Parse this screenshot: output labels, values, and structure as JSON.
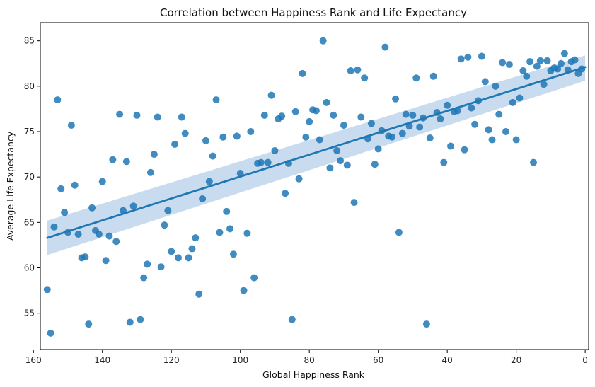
{
  "chart_data": {
    "type": "scatter",
    "title": "Correlation between Happiness Rank and Life Expectancy",
    "xlabel": "Global Happiness Rank",
    "ylabel": "Average Life Expectancy",
    "xlim": [
      158,
      -1
    ],
    "ylim": [
      51,
      87
    ],
    "x_inverted": true,
    "xticks": [
      160,
      140,
      120,
      100,
      80,
      60,
      40,
      20,
      0
    ],
    "yticks": [
      55,
      60,
      65,
      70,
      75,
      80,
      85
    ],
    "grid": false,
    "colors": {
      "points": "#1f77b4",
      "regression_line": "#1f77b4",
      "confidence_band": "#b7d0ea"
    },
    "regression": {
      "x": [
        156,
        0
      ],
      "y": [
        63.3,
        82.1
      ],
      "ci_lower": [
        61.4,
        80.6
      ],
      "ci_upper": [
        65.2,
        83.4
      ]
    },
    "points": [
      {
        "x": 156,
        "y": 57.6
      },
      {
        "x": 155,
        "y": 52.8
      },
      {
        "x": 154,
        "y": 64.5
      },
      {
        "x": 153,
        "y": 78.5
      },
      {
        "x": 152,
        "y": 68.7
      },
      {
        "x": 151,
        "y": 66.1
      },
      {
        "x": 150,
        "y": 63.9
      },
      {
        "x": 149,
        "y": 75.7
      },
      {
        "x": 148,
        "y": 69.1
      },
      {
        "x": 147,
        "y": 63.7
      },
      {
        "x": 146,
        "y": 61.1
      },
      {
        "x": 145,
        "y": 61.2
      },
      {
        "x": 144,
        "y": 53.8
      },
      {
        "x": 143,
        "y": 66.6
      },
      {
        "x": 142,
        "y": 64.1
      },
      {
        "x": 141,
        "y": 63.7
      },
      {
        "x": 140,
        "y": 69.5
      },
      {
        "x": 139,
        "y": 60.8
      },
      {
        "x": 138,
        "y": 63.5
      },
      {
        "x": 137,
        "y": 71.9
      },
      {
        "x": 136,
        "y": 62.9
      },
      {
        "x": 135,
        "y": 76.9
      },
      {
        "x": 134,
        "y": 66.3
      },
      {
        "x": 133,
        "y": 71.7
      },
      {
        "x": 132,
        "y": 54.0
      },
      {
        "x": 131,
        "y": 66.8
      },
      {
        "x": 130,
        "y": 76.8
      },
      {
        "x": 129,
        "y": 54.3
      },
      {
        "x": 128,
        "y": 58.9
      },
      {
        "x": 127,
        "y": 60.4
      },
      {
        "x": 126,
        "y": 70.5
      },
      {
        "x": 125,
        "y": 72.5
      },
      {
        "x": 124,
        "y": 76.6
      },
      {
        "x": 123,
        "y": 60.1
      },
      {
        "x": 122,
        "y": 64.7
      },
      {
        "x": 121,
        "y": 66.3
      },
      {
        "x": 120,
        "y": 61.8
      },
      {
        "x": 119,
        "y": 73.6
      },
      {
        "x": 118,
        "y": 61.1
      },
      {
        "x": 117,
        "y": 76.6
      },
      {
        "x": 116,
        "y": 74.8
      },
      {
        "x": 115,
        "y": 61.1
      },
      {
        "x": 114,
        "y": 62.1
      },
      {
        "x": 113,
        "y": 63.3
      },
      {
        "x": 112,
        "y": 57.1
      },
      {
        "x": 111,
        "y": 67.6
      },
      {
        "x": 110,
        "y": 74.0
      },
      {
        "x": 109,
        "y": 69.5
      },
      {
        "x": 108,
        "y": 72.3
      },
      {
        "x": 107,
        "y": 78.5
      },
      {
        "x": 106,
        "y": 63.9
      },
      {
        "x": 105,
        "y": 74.4
      },
      {
        "x": 104,
        "y": 66.2
      },
      {
        "x": 103,
        "y": 64.3
      },
      {
        "x": 102,
        "y": 61.5
      },
      {
        "x": 101,
        "y": 74.5
      },
      {
        "x": 100,
        "y": 70.4
      },
      {
        "x": 99,
        "y": 57.5
      },
      {
        "x": 98,
        "y": 63.8
      },
      {
        "x": 97,
        "y": 75.0
      },
      {
        "x": 96,
        "y": 58.9
      },
      {
        "x": 95,
        "y": 71.5
      },
      {
        "x": 94,
        "y": 71.6
      },
      {
        "x": 93,
        "y": 76.8
      },
      {
        "x": 92,
        "y": 71.6
      },
      {
        "x": 91,
        "y": 79.0
      },
      {
        "x": 90,
        "y": 72.9
      },
      {
        "x": 89,
        "y": 76.4
      },
      {
        "x": 88,
        "y": 76.7
      },
      {
        "x": 87,
        "y": 68.2
      },
      {
        "x": 86,
        "y": 71.5
      },
      {
        "x": 85,
        "y": 54.3
      },
      {
        "x": 84,
        "y": 77.2
      },
      {
        "x": 83,
        "y": 69.8
      },
      {
        "x": 82,
        "y": 81.4
      },
      {
        "x": 81,
        "y": 74.4
      },
      {
        "x": 80,
        "y": 76.1
      },
      {
        "x": 79,
        "y": 77.4
      },
      {
        "x": 78,
        "y": 77.3
      },
      {
        "x": 77,
        "y": 74.1
      },
      {
        "x": 76,
        "y": 85.0
      },
      {
        "x": 75,
        "y": 78.2
      },
      {
        "x": 74,
        "y": 71.0
      },
      {
        "x": 73,
        "y": 76.8
      },
      {
        "x": 72,
        "y": 72.9
      },
      {
        "x": 71,
        "y": 71.8
      },
      {
        "x": 70,
        "y": 75.7
      },
      {
        "x": 69,
        "y": 71.3
      },
      {
        "x": 68,
        "y": 81.7
      },
      {
        "x": 67,
        "y": 67.2
      },
      {
        "x": 66,
        "y": 81.8
      },
      {
        "x": 65,
        "y": 76.6
      },
      {
        "x": 64,
        "y": 80.9
      },
      {
        "x": 63,
        "y": 74.2
      },
      {
        "x": 62,
        "y": 75.9
      },
      {
        "x": 61,
        "y": 71.4
      },
      {
        "x": 60,
        "y": 73.1
      },
      {
        "x": 59,
        "y": 75.1
      },
      {
        "x": 58,
        "y": 84.3
      },
      {
        "x": 57,
        "y": 74.5
      },
      {
        "x": 56,
        "y": 74.4
      },
      {
        "x": 55,
        "y": 78.6
      },
      {
        "x": 54,
        "y": 63.9
      },
      {
        "x": 53,
        "y": 74.8
      },
      {
        "x": 52,
        "y": 76.9
      },
      {
        "x": 51,
        "y": 75.6
      },
      {
        "x": 50,
        "y": 76.8
      },
      {
        "x": 49,
        "y": 80.9
      },
      {
        "x": 48,
        "y": 75.5
      },
      {
        "x": 47,
        "y": 76.5
      },
      {
        "x": 46,
        "y": 53.8
      },
      {
        "x": 45,
        "y": 74.3
      },
      {
        "x": 44,
        "y": 81.1
      },
      {
        "x": 43,
        "y": 77.1
      },
      {
        "x": 42,
        "y": 76.4
      },
      {
        "x": 41,
        "y": 71.6
      },
      {
        "x": 40,
        "y": 77.9
      },
      {
        "x": 39,
        "y": 73.4
      },
      {
        "x": 38,
        "y": 77.2
      },
      {
        "x": 37,
        "y": 77.3
      },
      {
        "x": 36,
        "y": 83.0
      },
      {
        "x": 35,
        "y": 73.0
      },
      {
        "x": 34,
        "y": 83.2
      },
      {
        "x": 33,
        "y": 77.6
      },
      {
        "x": 32,
        "y": 75.8
      },
      {
        "x": 31,
        "y": 78.4
      },
      {
        "x": 30,
        "y": 83.3
      },
      {
        "x": 29,
        "y": 80.5
      },
      {
        "x": 28,
        "y": 75.2
      },
      {
        "x": 27,
        "y": 74.1
      },
      {
        "x": 26,
        "y": 80.0
      },
      {
        "x": 25,
        "y": 76.9
      },
      {
        "x": 24,
        "y": 82.6
      },
      {
        "x": 23,
        "y": 75.0
      },
      {
        "x": 22,
        "y": 82.4
      },
      {
        "x": 21,
        "y": 78.2
      },
      {
        "x": 20,
        "y": 74.1
      },
      {
        "x": 19,
        "y": 78.7
      },
      {
        "x": 18,
        "y": 81.7
      },
      {
        "x": 17,
        "y": 81.1
      },
      {
        "x": 16,
        "y": 82.7
      },
      {
        "x": 15,
        "y": 71.6
      },
      {
        "x": 14,
        "y": 82.2
      },
      {
        "x": 13,
        "y": 82.8
      },
      {
        "x": 12,
        "y": 80.2
      },
      {
        "x": 11,
        "y": 82.8
      },
      {
        "x": 10,
        "y": 81.7
      },
      {
        "x": 9,
        "y": 82.0
      },
      {
        "x": 8,
        "y": 81.9
      },
      {
        "x": 7,
        "y": 82.5
      },
      {
        "x": 6,
        "y": 83.6
      },
      {
        "x": 5,
        "y": 81.8
      },
      {
        "x": 4,
        "y": 82.7
      },
      {
        "x": 3,
        "y": 82.9
      },
      {
        "x": 2,
        "y": 81.4
      },
      {
        "x": 1,
        "y": 81.9
      }
    ]
  }
}
